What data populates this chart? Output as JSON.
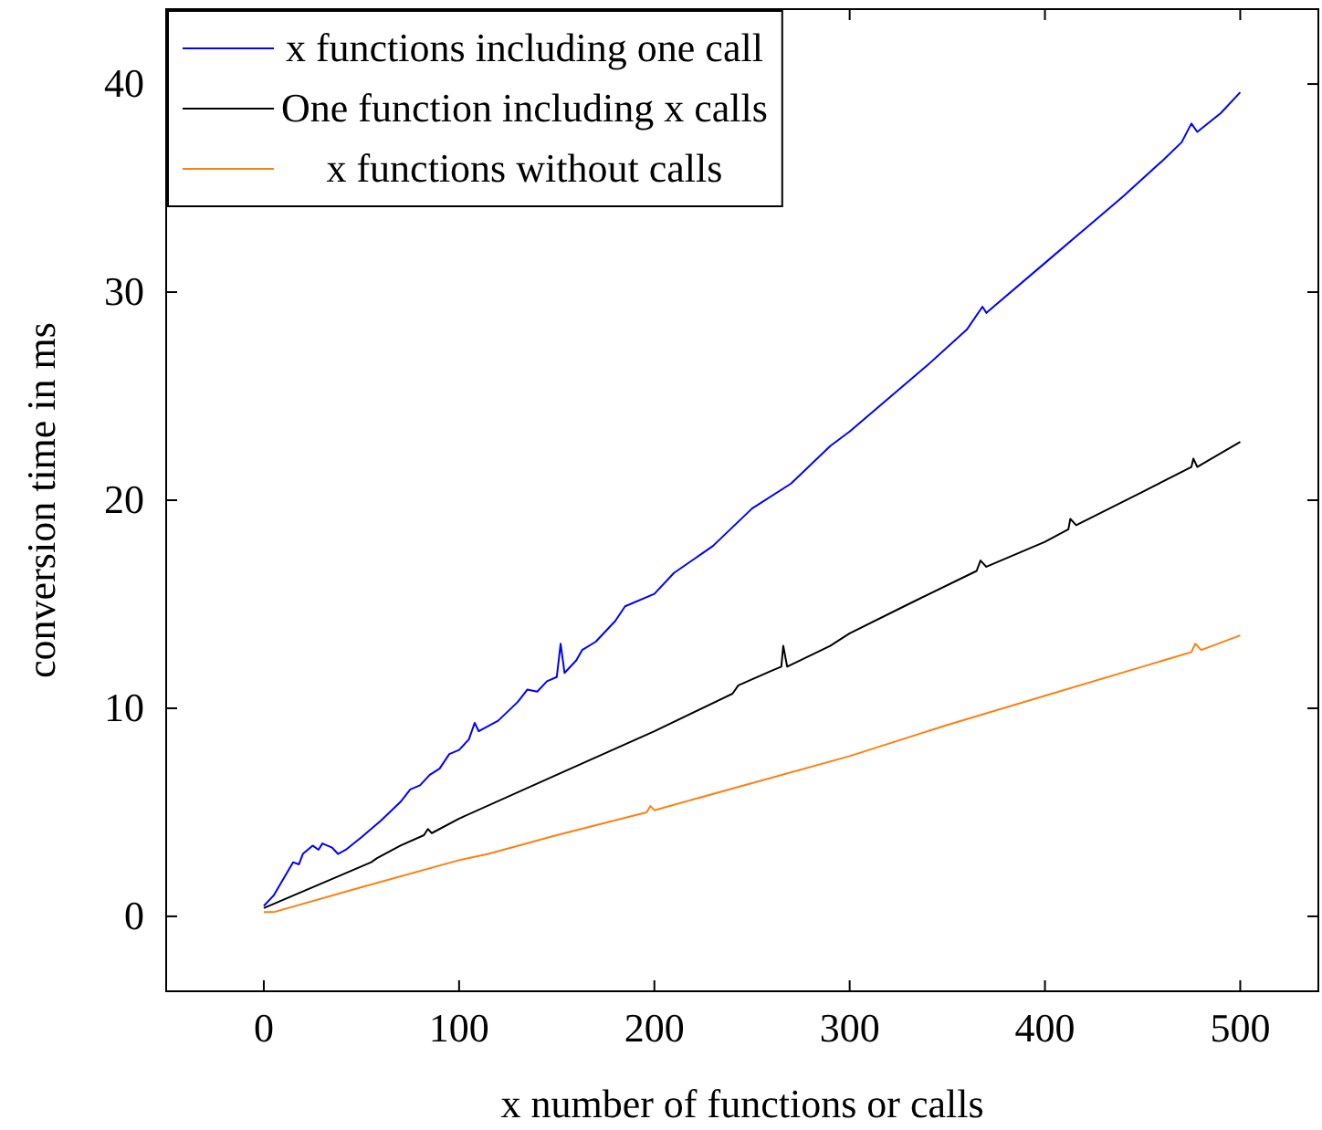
{
  "chart_data": {
    "type": "line",
    "xlabel": "x number of functions or calls",
    "ylabel": "conversion time in ms",
    "xlim": [
      -50,
      540
    ],
    "ylim": [
      -3.6,
      43.6
    ],
    "xticks": [
      0,
      100,
      200,
      300,
      400,
      500
    ],
    "yticks": [
      0,
      10,
      20,
      30,
      40
    ],
    "grid": false,
    "legend": "top left",
    "marker": "none",
    "line_style": "solid",
    "series": [
      {
        "name": "x functions including one call",
        "color": "#0000ff",
        "x": [
          0,
          5,
          10,
          15,
          18,
          20,
          25,
          28,
          30,
          35,
          38,
          42,
          50,
          60,
          70,
          75,
          80,
          85,
          90,
          95,
          100,
          105,
          108,
          110,
          120,
          130,
          135,
          140,
          145,
          150,
          152,
          154,
          160,
          163,
          170,
          180,
          185,
          200,
          210,
          230,
          250,
          270,
          290,
          300,
          320,
          340,
          360,
          368,
          370,
          400,
          420,
          440,
          460,
          470,
          475,
          478,
          490,
          500
        ],
        "values": [
          0.5,
          1,
          1.8,
          2.6,
          2.5,
          3,
          3.4,
          3.2,
          3.5,
          3.3,
          3,
          3.2,
          3.8,
          4.6,
          5.5,
          6.1,
          6.3,
          6.8,
          7.1,
          7.8,
          8,
          8.5,
          9.3,
          8.9,
          9.4,
          10.3,
          10.9,
          10.8,
          11.3,
          11.5,
          13.1,
          11.7,
          12.3,
          12.8,
          13.2,
          14.2,
          14.9,
          15.5,
          16.5,
          17.8,
          19.6,
          20.8,
          22.6,
          23.3,
          24.9,
          26.5,
          28.2,
          29.3,
          29,
          31.4,
          33,
          34.6,
          36.3,
          37.2,
          38.1,
          37.7,
          38.6,
          39.6
        ]
      },
      {
        "name": "One function including x calls",
        "color": "#000000",
        "x": [
          0,
          20,
          40,
          55,
          58,
          70,
          82,
          84,
          86,
          100,
          150,
          200,
          240,
          243,
          260,
          265,
          266,
          268,
          290,
          300,
          330,
          365,
          367,
          370,
          400,
          412,
          413,
          416,
          450,
          475,
          476,
          478,
          500
        ],
        "values": [
          0.4,
          1.2,
          2,
          2.6,
          2.8,
          3.4,
          3.9,
          4.2,
          4,
          4.7,
          6.8,
          8.9,
          10.7,
          11.1,
          11.8,
          12,
          13,
          12,
          13,
          13.6,
          15,
          16.6,
          17.1,
          16.8,
          18,
          18.6,
          19.1,
          18.8,
          20.4,
          21.6,
          22,
          21.6,
          22.8
        ]
      },
      {
        "name": "x functions without calls",
        "color": "#ff7f0e",
        "x": [
          0,
          5,
          50,
          100,
          115,
          150,
          196,
          198,
          200,
          250,
          300,
          350,
          400,
          450,
          475,
          477,
          480,
          500
        ],
        "values": [
          0.2,
          0.2,
          1.4,
          2.7,
          3,
          3.9,
          5,
          5.3,
          5.1,
          6.4,
          7.7,
          9.2,
          10.6,
          12,
          12.7,
          13.1,
          12.8,
          13.5
        ]
      }
    ]
  }
}
